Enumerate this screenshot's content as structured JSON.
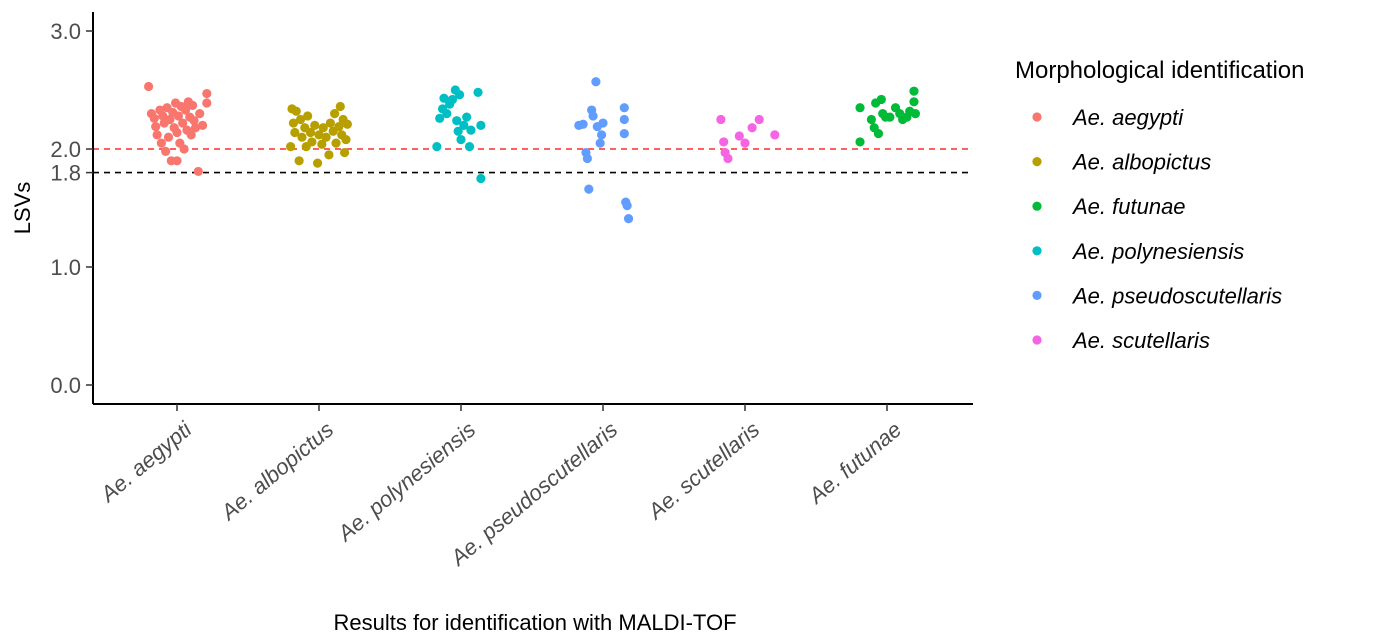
{
  "chart_data": {
    "type": "scatter",
    "style": "jitter strip plot",
    "xlabel": "Results for identification with MALDI-TOF",
    "ylabel": "LSVs",
    "categories": [
      "Ae. aegypti",
      "Ae. albopictus",
      "Ae. polynesiensis",
      "Ae. pseudoscutellaris",
      "Ae. scutellaris",
      "Ae. futunae"
    ],
    "yticks": [
      0.0,
      1.0,
      1.8,
      2.0,
      3.0
    ],
    "ytick_labels": [
      "0.0",
      "1.0",
      "1.8",
      "2.0",
      "3.0"
    ],
    "ylim": [
      -0.15,
      3.15
    ],
    "thresholds": [
      {
        "value": 2.0,
        "color": "#ff2b2b"
      },
      {
        "value": 1.8,
        "color": "#000000"
      }
    ],
    "grid": false,
    "legend": {
      "title": "Morphological identification",
      "position": "right",
      "entries": [
        {
          "name": "Ae. aegypti",
          "color": "#f8766d"
        },
        {
          "name": "Ae. albopictus",
          "color": "#b79f00"
        },
        {
          "name": "Ae. futunae",
          "color": "#00ba38"
        },
        {
          "name": "Ae. polynesiensis",
          "color": "#00bfc4"
        },
        {
          "name": "Ae. pseudoscutellaris",
          "color": "#619cff"
        },
        {
          "name": "Ae. scutellaris",
          "color": "#f564e3"
        }
      ]
    },
    "series": [
      {
        "name": "Ae. aegypti",
        "color": "#f8766d",
        "points": [
          {
            "x": "Ae. aegypti",
            "jitter": -0.2,
            "y": 2.53
          },
          {
            "x": "Ae. aegypti",
            "jitter": -0.18,
            "y": 2.3
          },
          {
            "x": "Ae. aegypti",
            "jitter": -0.16,
            "y": 2.26
          },
          {
            "x": "Ae. aegypti",
            "jitter": -0.15,
            "y": 2.19
          },
          {
            "x": "Ae. aegypti",
            "jitter": -0.14,
            "y": 2.12
          },
          {
            "x": "Ae. aegypti",
            "jitter": -0.12,
            "y": 2.33
          },
          {
            "x": "Ae. aegypti",
            "jitter": -0.11,
            "y": 2.05
          },
          {
            "x": "Ae. aegypti",
            "jitter": -0.1,
            "y": 2.28
          },
          {
            "x": "Ae. aegypti",
            "jitter": -0.09,
            "y": 2.22
          },
          {
            "x": "Ae. aegypti",
            "jitter": -0.08,
            "y": 1.98
          },
          {
            "x": "Ae. aegypti",
            "jitter": -0.07,
            "y": 2.35
          },
          {
            "x": "Ae. aegypti",
            "jitter": -0.06,
            "y": 2.1
          },
          {
            "x": "Ae. aegypti",
            "jitter": -0.05,
            "y": 2.25
          },
          {
            "x": "Ae. aegypti",
            "jitter": -0.04,
            "y": 1.9
          },
          {
            "x": "Ae. aegypti",
            "jitter": -0.03,
            "y": 2.31
          },
          {
            "x": "Ae. aegypti",
            "jitter": -0.02,
            "y": 2.18
          },
          {
            "x": "Ae. aegypti",
            "jitter": -0.01,
            "y": 2.39
          },
          {
            "x": "Ae. aegypti",
            "jitter": 0.0,
            "y": 2.14
          },
          {
            "x": "Ae. aegypti",
            "jitter": 0.0,
            "y": 1.9
          },
          {
            "x": "Ae. aegypti",
            "jitter": 0.01,
            "y": 2.28
          },
          {
            "x": "Ae. aegypti",
            "jitter": 0.02,
            "y": 2.05
          },
          {
            "x": "Ae. aegypti",
            "jitter": 0.03,
            "y": 2.36
          },
          {
            "x": "Ae. aegypti",
            "jitter": 0.04,
            "y": 2.22
          },
          {
            "x": "Ae. aegypti",
            "jitter": 0.05,
            "y": 2.0
          },
          {
            "x": "Ae. aegypti",
            "jitter": 0.06,
            "y": 2.33
          },
          {
            "x": "Ae. aegypti",
            "jitter": 0.07,
            "y": 2.16
          },
          {
            "x": "Ae. aegypti",
            "jitter": 0.08,
            "y": 2.4
          },
          {
            "x": "Ae. aegypti",
            "jitter": 0.09,
            "y": 2.27
          },
          {
            "x": "Ae. aegypti",
            "jitter": 0.1,
            "y": 2.12
          },
          {
            "x": "Ae. aegypti",
            "jitter": 0.11,
            "y": 2.37
          },
          {
            "x": "Ae. aegypti",
            "jitter": 0.12,
            "y": 2.24
          },
          {
            "x": "Ae. aegypti",
            "jitter": 0.13,
            "y": 2.18
          },
          {
            "x": "Ae. aegypti",
            "jitter": 0.15,
            "y": 1.81
          },
          {
            "x": "Ae. aegypti",
            "jitter": 0.16,
            "y": 2.3
          },
          {
            "x": "Ae. aegypti",
            "jitter": 0.18,
            "y": 2.2
          },
          {
            "x": "Ae. aegypti",
            "jitter": 0.21,
            "y": 2.47
          },
          {
            "x": "Ae. aegypti",
            "jitter": 0.21,
            "y": 2.39
          }
        ]
      },
      {
        "name": "Ae. albopictus",
        "color": "#b79f00",
        "points": [
          {
            "x": "Ae. albopictus",
            "jitter": -0.2,
            "y": 2.02
          },
          {
            "x": "Ae. albopictus",
            "jitter": -0.19,
            "y": 2.34
          },
          {
            "x": "Ae. albopictus",
            "jitter": -0.18,
            "y": 2.22
          },
          {
            "x": "Ae. albopictus",
            "jitter": -0.17,
            "y": 2.14
          },
          {
            "x": "Ae. albopictus",
            "jitter": -0.16,
            "y": 2.32
          },
          {
            "x": "Ae. albopictus",
            "jitter": -0.14,
            "y": 1.9
          },
          {
            "x": "Ae. albopictus",
            "jitter": -0.13,
            "y": 2.25
          },
          {
            "x": "Ae. albopictus",
            "jitter": -0.12,
            "y": 2.1
          },
          {
            "x": "Ae. albopictus",
            "jitter": -0.1,
            "y": 2.18
          },
          {
            "x": "Ae. albopictus",
            "jitter": -0.09,
            "y": 2.02
          },
          {
            "x": "Ae. albopictus",
            "jitter": -0.08,
            "y": 2.28
          },
          {
            "x": "Ae. albopictus",
            "jitter": -0.06,
            "y": 2.14
          },
          {
            "x": "Ae. albopictus",
            "jitter": -0.05,
            "y": 2.06
          },
          {
            "x": "Ae. albopictus",
            "jitter": -0.03,
            "y": 2.2
          },
          {
            "x": "Ae. albopictus",
            "jitter": -0.01,
            "y": 1.88
          },
          {
            "x": "Ae. albopictus",
            "jitter": 0.0,
            "y": 2.12
          },
          {
            "x": "Ae. albopictus",
            "jitter": 0.02,
            "y": 2.04
          },
          {
            "x": "Ae. albopictus",
            "jitter": 0.03,
            "y": 2.18
          },
          {
            "x": "Ae. albopictus",
            "jitter": 0.05,
            "y": 2.1
          },
          {
            "x": "Ae. albopictus",
            "jitter": 0.07,
            "y": 1.95
          },
          {
            "x": "Ae. albopictus",
            "jitter": 0.08,
            "y": 2.22
          },
          {
            "x": "Ae. albopictus",
            "jitter": 0.1,
            "y": 2.15
          },
          {
            "x": "Ae. albopictus",
            "jitter": 0.11,
            "y": 2.3
          },
          {
            "x": "Ae. albopictus",
            "jitter": 0.12,
            "y": 2.05
          },
          {
            "x": "Ae. albopictus",
            "jitter": 0.14,
            "y": 2.19
          },
          {
            "x": "Ae. albopictus",
            "jitter": 0.15,
            "y": 2.36
          },
          {
            "x": "Ae. albopictus",
            "jitter": 0.16,
            "y": 2.12
          },
          {
            "x": "Ae. albopictus",
            "jitter": 0.17,
            "y": 2.25
          },
          {
            "x": "Ae. albopictus",
            "jitter": 0.18,
            "y": 1.97
          },
          {
            "x": "Ae. albopictus",
            "jitter": 0.19,
            "y": 2.08
          },
          {
            "x": "Ae. albopictus",
            "jitter": 0.2,
            "y": 2.21
          }
        ]
      },
      {
        "name": "Ae. polynesiensis",
        "color": "#00bfc4",
        "points": [
          {
            "x": "Ae. polynesiensis",
            "jitter": -0.17,
            "y": 2.02
          },
          {
            "x": "Ae. polynesiensis",
            "jitter": -0.15,
            "y": 2.26
          },
          {
            "x": "Ae. polynesiensis",
            "jitter": -0.13,
            "y": 2.34
          },
          {
            "x": "Ae. polynesiensis",
            "jitter": -0.12,
            "y": 2.43
          },
          {
            "x": "Ae. polynesiensis",
            "jitter": -0.1,
            "y": 2.3
          },
          {
            "x": "Ae. polynesiensis",
            "jitter": -0.08,
            "y": 2.38
          },
          {
            "x": "Ae. polynesiensis",
            "jitter": -0.06,
            "y": 2.42
          },
          {
            "x": "Ae. polynesiensis",
            "jitter": -0.04,
            "y": 2.5
          },
          {
            "x": "Ae. polynesiensis",
            "jitter": -0.03,
            "y": 2.24
          },
          {
            "x": "Ae. polynesiensis",
            "jitter": -0.02,
            "y": 2.15
          },
          {
            "x": "Ae. polynesiensis",
            "jitter": -0.01,
            "y": 2.46
          },
          {
            "x": "Ae. polynesiensis",
            "jitter": 0.0,
            "y": 2.08
          },
          {
            "x": "Ae. polynesiensis",
            "jitter": 0.02,
            "y": 2.2
          },
          {
            "x": "Ae. polynesiensis",
            "jitter": 0.04,
            "y": 2.27
          },
          {
            "x": "Ae. polynesiensis",
            "jitter": 0.06,
            "y": 2.02
          },
          {
            "x": "Ae. polynesiensis",
            "jitter": 0.07,
            "y": 2.16
          },
          {
            "x": "Ae. polynesiensis",
            "jitter": 0.12,
            "y": 2.48
          },
          {
            "x": "Ae. polynesiensis",
            "jitter": 0.14,
            "y": 2.2
          },
          {
            "x": "Ae. polynesiensis",
            "jitter": 0.14,
            "y": 1.75
          }
        ]
      },
      {
        "name": "Ae. pseudoscutellaris",
        "color": "#619cff",
        "points": [
          {
            "x": "Ae. pseudoscutellaris",
            "jitter": -0.17,
            "y": 2.2
          },
          {
            "x": "Ae. pseudoscutellaris",
            "jitter": -0.14,
            "y": 2.21
          },
          {
            "x": "Ae. pseudoscutellaris",
            "jitter": -0.12,
            "y": 1.97
          },
          {
            "x": "Ae. pseudoscutellaris",
            "jitter": -0.11,
            "y": 1.92
          },
          {
            "x": "Ae. pseudoscutellaris",
            "jitter": -0.1,
            "y": 1.66
          },
          {
            "x": "Ae. pseudoscutellaris",
            "jitter": -0.08,
            "y": 2.33
          },
          {
            "x": "Ae. pseudoscutellaris",
            "jitter": -0.07,
            "y": 2.28
          },
          {
            "x": "Ae. pseudoscutellaris",
            "jitter": -0.05,
            "y": 2.57
          },
          {
            "x": "Ae. pseudoscutellaris",
            "jitter": -0.04,
            "y": 2.19
          },
          {
            "x": "Ae. pseudoscutellaris",
            "jitter": -0.02,
            "y": 2.05
          },
          {
            "x": "Ae. pseudoscutellaris",
            "jitter": -0.01,
            "y": 2.12
          },
          {
            "x": "Ae. pseudoscutellaris",
            "jitter": 0.0,
            "y": 2.22
          },
          {
            "x": "Ae. pseudoscutellaris",
            "jitter": 0.15,
            "y": 2.35
          },
          {
            "x": "Ae. pseudoscutellaris",
            "jitter": 0.15,
            "y": 2.25
          },
          {
            "x": "Ae. pseudoscutellaris",
            "jitter": 0.15,
            "y": 2.13
          },
          {
            "x": "Ae. pseudoscutellaris",
            "jitter": 0.16,
            "y": 1.55
          },
          {
            "x": "Ae. pseudoscutellaris",
            "jitter": 0.17,
            "y": 1.52
          },
          {
            "x": "Ae. pseudoscutellaris",
            "jitter": 0.18,
            "y": 1.41
          }
        ]
      },
      {
        "name": "Ae. scutellaris",
        "color": "#f564e3",
        "points": [
          {
            "x": "Ae. scutellaris",
            "jitter": -0.17,
            "y": 2.25
          },
          {
            "x": "Ae. scutellaris",
            "jitter": -0.15,
            "y": 2.06
          },
          {
            "x": "Ae. scutellaris",
            "jitter": -0.14,
            "y": 1.97
          },
          {
            "x": "Ae. scutellaris",
            "jitter": -0.12,
            "y": 1.92
          },
          {
            "x": "Ae. scutellaris",
            "jitter": -0.04,
            "y": 2.11
          },
          {
            "x": "Ae. scutellaris",
            "jitter": 0.0,
            "y": 2.05
          },
          {
            "x": "Ae. scutellaris",
            "jitter": 0.05,
            "y": 2.18
          },
          {
            "x": "Ae. scutellaris",
            "jitter": 0.1,
            "y": 2.25
          },
          {
            "x": "Ae. scutellaris",
            "jitter": 0.21,
            "y": 2.12
          }
        ]
      },
      {
        "name": "Ae. futunae",
        "color": "#00ba38",
        "points": [
          {
            "x": "Ae. futunae",
            "jitter": -0.19,
            "y": 2.35
          },
          {
            "x": "Ae. futunae",
            "jitter": -0.19,
            "y": 2.06
          },
          {
            "x": "Ae. futunae",
            "jitter": -0.11,
            "y": 2.25
          },
          {
            "x": "Ae. futunae",
            "jitter": -0.09,
            "y": 2.18
          },
          {
            "x": "Ae. futunae",
            "jitter": -0.08,
            "y": 2.39
          },
          {
            "x": "Ae. futunae",
            "jitter": -0.06,
            "y": 2.13
          },
          {
            "x": "Ae. futunae",
            "jitter": -0.04,
            "y": 2.42
          },
          {
            "x": "Ae. futunae",
            "jitter": -0.03,
            "y": 2.3
          },
          {
            "x": "Ae. futunae",
            "jitter": -0.01,
            "y": 2.27
          },
          {
            "x": "Ae. futunae",
            "jitter": 0.02,
            "y": 2.27
          },
          {
            "x": "Ae. futunae",
            "jitter": 0.06,
            "y": 2.35
          },
          {
            "x": "Ae. futunae",
            "jitter": 0.09,
            "y": 2.3
          },
          {
            "x": "Ae. futunae",
            "jitter": 0.11,
            "y": 2.25
          },
          {
            "x": "Ae. futunae",
            "jitter": 0.14,
            "y": 2.27
          },
          {
            "x": "Ae. futunae",
            "jitter": 0.16,
            "y": 2.32
          },
          {
            "x": "Ae. futunae",
            "jitter": 0.19,
            "y": 2.4
          },
          {
            "x": "Ae. futunae",
            "jitter": 0.19,
            "y": 2.49
          },
          {
            "x": "Ae. futunae",
            "jitter": 0.2,
            "y": 2.3
          }
        ]
      }
    ]
  }
}
